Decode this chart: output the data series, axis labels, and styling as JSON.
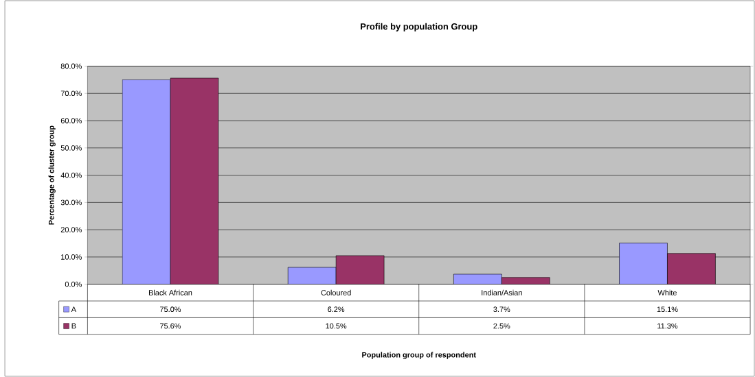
{
  "chart_data": {
    "type": "bar",
    "title": "Profile by population Group",
    "annotations": [
      "Population group of respondent"
    ],
    "ylabel": "Percentage of cluster group",
    "categories": [
      "Black African",
      "Coloured",
      "Indian/Asian",
      "White"
    ],
    "series": [
      {
        "name": "A",
        "color": "#9999ff",
        "values": [
          75.0,
          6.2,
          3.7,
          15.1
        ],
        "value_labels": [
          "75.0%",
          "6.2%",
          "3.7%",
          "15.1%"
        ]
      },
      {
        "name": "B",
        "color": "#993366",
        "values": [
          75.6,
          10.5,
          2.5,
          11.3
        ],
        "value_labels": [
          "75.6%",
          "10.5%",
          "2.5%",
          "11.3%"
        ]
      }
    ],
    "ylim": [
      0,
      80
    ],
    "yticks": [
      {
        "value": 0,
        "label": "0.0%"
      },
      {
        "value": 10,
        "label": "10.0%"
      },
      {
        "value": 20,
        "label": "20.0%"
      },
      {
        "value": 30,
        "label": "30.0%"
      },
      {
        "value": 40,
        "label": "40.0%"
      },
      {
        "value": 50,
        "label": "50.0%"
      },
      {
        "value": 60,
        "label": "60.0%"
      },
      {
        "value": 70,
        "label": "70.0%"
      },
      {
        "value": 80,
        "label": "80.0%"
      }
    ],
    "grid": "y",
    "legend": "bottom"
  }
}
